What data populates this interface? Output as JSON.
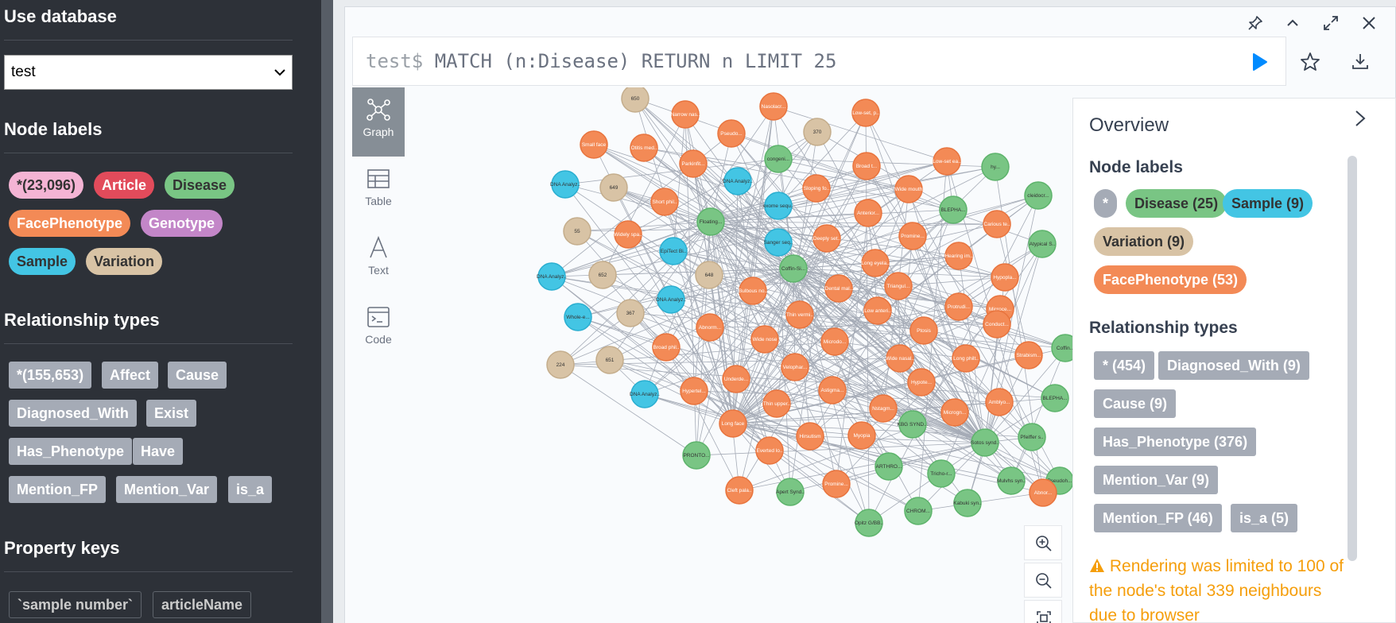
{
  "sidebar": {
    "use_database_heading": "Use database",
    "database_value": "test",
    "node_labels_heading": "Node labels",
    "node_labels": [
      {
        "label": "*(23,096)",
        "color": "#f4b4d4",
        "text_color": "#333333"
      },
      {
        "label": "Article",
        "color": "#e24b5b",
        "text_color": "#ffffff"
      },
      {
        "label": "Disease",
        "color": "#79c584",
        "text_color": "#333333"
      },
      {
        "label": "FacePhenotype",
        "color": "#f38a56",
        "text_color": "#ffffff"
      },
      {
        "label": "Genotype",
        "color": "#c386c8",
        "text_color": "#ffffff"
      },
      {
        "label": "Sample",
        "color": "#43c5e4",
        "text_color": "#333333"
      },
      {
        "label": "Variation",
        "color": "#d8c3a5",
        "text_color": "#333333"
      }
    ],
    "relationship_types_heading": "Relationship types",
    "relationship_types": [
      "*(155,653)",
      "Affect",
      "Cause",
      "Diagnosed_With",
      "Exist",
      "Has_Phenotype",
      "Have",
      "Mention_FP",
      "Mention_Var",
      "is_a"
    ],
    "property_keys_heading": "Property keys",
    "property_keys": [
      "`sample number`",
      "articleName"
    ]
  },
  "query": {
    "prompt": "test$",
    "text": "MATCH (n:Disease) RETURN n LIMIT 25"
  },
  "view_tabs": [
    {
      "label": "Graph",
      "icon": "graph-icon",
      "active": true
    },
    {
      "label": "Table",
      "icon": "table-icon",
      "active": false
    },
    {
      "label": "Text",
      "icon": "text-icon",
      "active": false
    },
    {
      "label": "Code",
      "icon": "code-icon",
      "active": false
    }
  ],
  "graph": {
    "colors": {
      "disease": "#79c584",
      "sample": "#43c5e4",
      "variation": "#d8c3a5",
      "facephenotype": "#f38a56"
    },
    "nodes": [
      {
        "type": "variation",
        "label": "650"
      },
      {
        "type": "facephenotype",
        "label": "Narrow nasal brid..."
      },
      {
        "type": "facephenotype",
        "label": "Nasolacr..."
      },
      {
        "type": "facephenotype",
        "label": "Low-set, poster..."
      },
      {
        "type": "facephenotype",
        "label": "Small face"
      },
      {
        "type": "facephenotype",
        "label": "Otitis media"
      },
      {
        "type": "facephenotype",
        "label": "Pseudo..."
      },
      {
        "type": "variation",
        "label": "370"
      },
      {
        "type": "disease",
        "label": "congeni..."
      },
      {
        "type": "facephenotype",
        "label": "Parkinfit..."
      },
      {
        "type": "sample",
        "label": "DNA Analyz..."
      },
      {
        "type": "variation",
        "label": "649"
      },
      {
        "type": "sample",
        "label": "DNA Analyz..."
      },
      {
        "type": "facephenotype",
        "label": "Broad t..."
      },
      {
        "type": "facephenotype",
        "label": "Low-set ears"
      },
      {
        "type": "disease",
        "label": "hy..."
      },
      {
        "type": "facephenotype",
        "label": "Short philtr..."
      },
      {
        "type": "disease",
        "label": "Floating..."
      },
      {
        "type": "sample",
        "label": "exome sequ..."
      },
      {
        "type": "facephenotype",
        "label": "Sloping foreh..."
      },
      {
        "type": "facephenotype",
        "label": "Wide mouth"
      },
      {
        "type": "disease",
        "label": "BLEPHA..."
      },
      {
        "type": "disease",
        "label": "cleidocr..."
      },
      {
        "type": "variation",
        "label": "55"
      },
      {
        "type": "facephenotype",
        "label": "Widely spaced teeth"
      },
      {
        "type": "sample",
        "label": "EpiTect Bisulfite K..."
      },
      {
        "type": "sample",
        "label": "Sanger sequ..."
      },
      {
        "type": "facephenotype",
        "label": "Deeply set eye"
      },
      {
        "type": "facephenotype",
        "label": "Anterior..."
      },
      {
        "type": "facephenotype",
        "label": "Promine..."
      },
      {
        "type": "facephenotype",
        "label": "Carious teeth"
      },
      {
        "type": "disease",
        "label": "Atypical S..."
      },
      {
        "type": "sample",
        "label": "DNA Analyz..."
      },
      {
        "type": "variation",
        "label": "652"
      },
      {
        "type": "variation",
        "label": "648"
      },
      {
        "type": "disease",
        "label": "Coffin-Si..."
      },
      {
        "type": "facephenotype",
        "label": "Long eyelas..."
      },
      {
        "type": "facephenotype",
        "label": "Hearing impair..."
      },
      {
        "type": "facephenotype",
        "label": "Hypopla..."
      },
      {
        "type": "facephenotype",
        "label": "Bulbous nose"
      },
      {
        "type": "facephenotype",
        "label": "Dental maloc..."
      },
      {
        "type": "facephenotype",
        "label": "Triangul..."
      },
      {
        "type": "sample",
        "label": "DNA Analyz..."
      },
      {
        "type": "sample",
        "label": "Whole-e..."
      },
      {
        "type": "variation",
        "label": "367"
      },
      {
        "type": "facephenotype",
        "label": "Low anterior hairli..."
      },
      {
        "type": "facephenotype",
        "label": "Thin vermilion bord..."
      },
      {
        "type": "facephenotype",
        "label": "Protrudi..."
      },
      {
        "type": "facephenotype",
        "label": "Microce..."
      },
      {
        "type": "facephenotype",
        "label": "Abnorm..."
      },
      {
        "type": "facephenotype",
        "label": "Ptosis"
      },
      {
        "type": "facephenotype",
        "label": "Conduct..."
      },
      {
        "type": "facephenotype",
        "label": "Wide nose"
      },
      {
        "type": "facephenotype",
        "label": "Broad philtr..."
      },
      {
        "type": "facephenotype",
        "label": "Microdo..."
      },
      {
        "type": "variation",
        "label": "651"
      },
      {
        "type": "variation",
        "label": "224"
      },
      {
        "type": "facephenotype",
        "label": "Wide nasal brid..."
      },
      {
        "type": "facephenotype",
        "label": "Long philtr..."
      },
      {
        "type": "facephenotype",
        "label": "Strabism..."
      },
      {
        "type": "facephenotype",
        "label": "Velophar..."
      },
      {
        "type": "facephenotype",
        "label": "Underde..."
      },
      {
        "type": "facephenotype",
        "label": "Hypote..."
      },
      {
        "type": "facephenotype",
        "label": "Hypertel..."
      },
      {
        "type": "sample",
        "label": "DNA Analyz..."
      },
      {
        "type": "facephenotype",
        "label": "Astigma..."
      },
      {
        "type": "facephenotype",
        "label": "Nstagm..."
      },
      {
        "type": "facephenotype",
        "label": "Amblyo..."
      },
      {
        "type": "disease",
        "label": "BLEPHA..."
      },
      {
        "type": "facephenotype",
        "label": "Thin upper lip verm"
      },
      {
        "type": "facephenotype",
        "label": "Microgn..."
      },
      {
        "type": "facephenotype",
        "label": "Long face"
      },
      {
        "type": "disease",
        "label": "KBG SYND..."
      },
      {
        "type": "facephenotype",
        "label": "Hirsutism"
      },
      {
        "type": "facephenotype",
        "label": "Myopia"
      },
      {
        "type": "disease",
        "label": "Pfeiffer syndr..."
      },
      {
        "type": "disease",
        "label": "Sotos syndr..."
      },
      {
        "type": "disease",
        "label": "PRONTO..."
      },
      {
        "type": "facephenotype",
        "label": "Everted lower lip v"
      },
      {
        "type": "disease",
        "label": "ARTHRO..."
      },
      {
        "type": "disease",
        "label": "Tricho-r..."
      },
      {
        "type": "facephenotype",
        "label": "Cleft palate"
      },
      {
        "type": "disease",
        "label": "Apert Syndr..."
      },
      {
        "type": "facephenotype",
        "label": "Promine..."
      },
      {
        "type": "disease",
        "label": "Mulvhs syndr..."
      },
      {
        "type": "disease",
        "label": "Pseudoh..."
      },
      {
        "type": "disease",
        "label": "Kabuki syndr..."
      },
      {
        "type": "disease",
        "label": "CHROM..."
      },
      {
        "type": "disease",
        "label": "Opitz G/BBB syn..."
      },
      {
        "type": "disease",
        "label": "Coffin..."
      },
      {
        "type": "facephenotype",
        "label": "Abnor..."
      }
    ]
  },
  "overview": {
    "title": "Overview",
    "node_labels_heading": "Node labels",
    "node_labels": [
      {
        "label": "*",
        "color": "#a5abb6",
        "text_color": "#ffffff"
      },
      {
        "label": "Disease (25)",
        "color": "#79c584",
        "text_color": "#333333"
      },
      {
        "label": "Sample (9)",
        "color": "#43c5e4",
        "text_color": "#333333"
      },
      {
        "label": "Variation (9)",
        "color": "#d8c3a5",
        "text_color": "#333333"
      },
      {
        "label": "FacePhenotype (53)",
        "color": "#f38a56",
        "text_color": "#ffffff"
      }
    ],
    "relationship_types_heading": "Relationship types",
    "relationship_types": [
      "* (454)",
      "Diagnosed_With (9)",
      "Cause (9)",
      "Has_Phenotype (376)",
      "Mention_Var (9)",
      "Mention_FP (46)",
      "is_a (5)"
    ],
    "warning_icon": "warning-icon",
    "warning_text": "Rendering was limited to 100 of the node's total 339 neighbours due to browser"
  }
}
